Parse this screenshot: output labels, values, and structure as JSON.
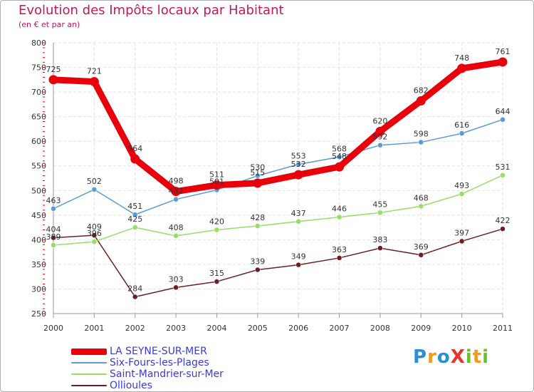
{
  "title": "Evolution des Impôts locaux par Habitant",
  "subtitle": "(en € et par an)",
  "brand": {
    "letters": [
      {
        "ch": "P",
        "color": "#2a8fd8"
      },
      {
        "ch": "r",
        "color": "#f29a1a"
      },
      {
        "ch": "o",
        "color": "#2a8fd8"
      },
      {
        "ch": "X",
        "color": "#e8332a"
      },
      {
        "ch": "i",
        "color": "#6cbf2a"
      },
      {
        "ch": "t",
        "color": "#f29a1a"
      },
      {
        "ch": "i",
        "color": "#6cbf2a"
      }
    ]
  },
  "chart_data": {
    "type": "line",
    "title": "Evolution des Impôts locaux par Habitant",
    "subtitle": "(en € et par an)",
    "x": [
      "2000",
      "2001",
      "2002",
      "2003",
      "2004",
      "2005",
      "2006",
      "2007",
      "2008",
      "2009",
      "2010",
      "2011"
    ],
    "ylim": [
      250,
      800
    ],
    "yticks": [
      250,
      300,
      350,
      400,
      450,
      500,
      550,
      600,
      650,
      700,
      750,
      800
    ],
    "grid": true,
    "legend_position": "bottom-left",
    "series": [
      {
        "name": "LA SEYNE-SUR-MER",
        "color": "#e8000b",
        "values": [
          725,
          721,
          564,
          498,
          511,
          515,
          532,
          548,
          620,
          682,
          748,
          761
        ],
        "labels": [
          "725",
          "721",
          "564",
          "498",
          "511",
          "515",
          "532",
          "548",
          "620",
          "682",
          "748",
          "761"
        ]
      },
      {
        "name": "Six-Fours-les-Plages",
        "color": "#5b9bd5",
        "values": [
          463,
          502,
          451,
          482,
          501,
          530,
          553,
          568,
          592,
          598,
          616,
          644
        ],
        "labels": [
          "463",
          "502",
          "451",
          "482",
          "501",
          "530",
          "553",
          "568",
          "592",
          "598",
          "616",
          "644"
        ]
      },
      {
        "name": "Saint-Mandrier-sur-Mer",
        "color": "#99dd66",
        "values": [
          389,
          396,
          425,
          408,
          420,
          428,
          437,
          446,
          455,
          468,
          493,
          531
        ],
        "labels": [
          "389",
          "396",
          "425",
          "408",
          "420",
          "428",
          "437",
          "446",
          "455",
          "468",
          "493",
          "531"
        ]
      },
      {
        "name": "Ollioules",
        "color": "#6b1f24",
        "values": [
          404,
          409,
          284,
          303,
          315,
          339,
          349,
          363,
          383,
          369,
          397,
          422
        ],
        "labels": [
          "404",
          "409",
          "284",
          "303",
          "315",
          "339",
          "349",
          "363",
          "383",
          "369",
          "397",
          "422"
        ]
      }
    ]
  }
}
